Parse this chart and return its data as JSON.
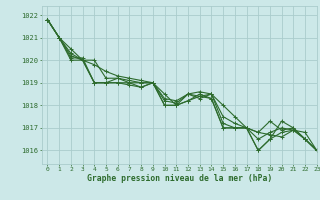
{
  "title": "Graphe pression niveau de la mer (hPa)",
  "bg_color": "#cce8e8",
  "grid_color": "#aacccc",
  "line_color": "#2d6b2d",
  "xlim": [
    -0.5,
    23
  ],
  "ylim": [
    1015.4,
    1022.4
  ],
  "yticks": [
    1016,
    1017,
    1018,
    1019,
    1020,
    1021,
    1022
  ],
  "xticks": [
    0,
    1,
    2,
    3,
    4,
    5,
    6,
    7,
    8,
    9,
    10,
    11,
    12,
    13,
    14,
    15,
    16,
    17,
    18,
    19,
    20,
    21,
    22,
    23
  ],
  "series": [
    [
      1021.8,
      1021.0,
      1020.5,
      1020.0,
      1019.8,
      1019.5,
      1019.3,
      1019.2,
      1019.1,
      1019.0,
      1018.5,
      1018.0,
      1018.2,
      1018.4,
      1018.5,
      1018.0,
      1017.5,
      1017.0,
      1016.8,
      1016.7,
      1016.6,
      1016.9,
      1016.5,
      1016.0
    ],
    [
      1021.8,
      1021.0,
      1020.3,
      1020.0,
      1019.0,
      1019.0,
      1019.2,
      1019.0,
      1019.0,
      1019.0,
      1018.0,
      1018.0,
      1018.5,
      1018.4,
      1018.3,
      1017.0,
      1017.0,
      1017.0,
      1016.8,
      1017.3,
      1016.9,
      1017.0,
      1016.5,
      1016.0
    ],
    [
      1021.8,
      1021.0,
      1020.2,
      1020.0,
      1020.0,
      1019.2,
      1019.2,
      1019.1,
      1019.0,
      1019.0,
      1018.0,
      1018.0,
      1018.2,
      1018.5,
      1018.3,
      1017.0,
      1017.0,
      1017.0,
      1016.0,
      1016.5,
      1017.3,
      1017.0,
      1016.5,
      1016.0
    ],
    [
      1021.8,
      1021.0,
      1020.1,
      1020.1,
      1019.0,
      1019.0,
      1019.0,
      1019.0,
      1018.8,
      1019.0,
      1018.3,
      1018.2,
      1018.5,
      1018.3,
      1018.5,
      1017.2,
      1017.0,
      1017.0,
      1016.5,
      1016.8,
      1017.0,
      1016.9,
      1016.8,
      1016.0
    ],
    [
      1021.8,
      1021.0,
      1020.0,
      1020.0,
      1019.0,
      1019.0,
      1019.0,
      1018.9,
      1018.8,
      1019.0,
      1018.2,
      1018.1,
      1018.5,
      1018.6,
      1018.5,
      1017.5,
      1017.2,
      1017.0,
      1016.0,
      1016.5,
      1016.8,
      1016.9,
      1016.5,
      1016.0
    ]
  ]
}
